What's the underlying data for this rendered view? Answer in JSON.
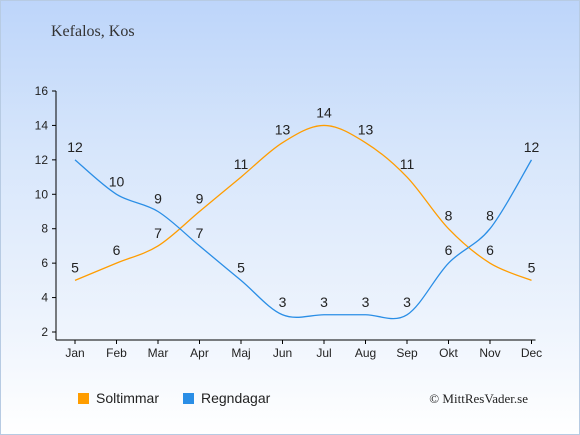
{
  "header": {
    "title": "Kefalos, Kos"
  },
  "legend": {
    "sun_label": "Soltimmar",
    "rain_label": "Regndagar"
  },
  "footer": {
    "copyright": "© MittResVader.se"
  },
  "colors": {
    "sun": "#ff9d00",
    "rain": "#2a8ee6",
    "axis": "#000000"
  },
  "chart_data": {
    "type": "line",
    "title": "Kefalos, Kos",
    "xlabel": "",
    "ylabel": "",
    "categories": [
      "Jan",
      "Feb",
      "Mar",
      "Apr",
      "Maj",
      "Jun",
      "Jul",
      "Aug",
      "Sep",
      "Okt",
      "Nov",
      "Dec"
    ],
    "ylim": [
      2,
      16
    ],
    "yticks": [
      2,
      4,
      6,
      8,
      10,
      12,
      14,
      16
    ],
    "grid": false,
    "legend_position": "bottom-left",
    "series": [
      {
        "name": "Soltimmar",
        "color": "#ff9d00",
        "values": [
          5,
          6,
          7,
          9,
          11,
          13,
          14,
          13,
          11,
          8,
          6,
          5
        ]
      },
      {
        "name": "Regndagar",
        "color": "#2a8ee6",
        "values": [
          12,
          10,
          9,
          7,
          5,
          3,
          3,
          3,
          3,
          6,
          8,
          12
        ]
      }
    ]
  }
}
